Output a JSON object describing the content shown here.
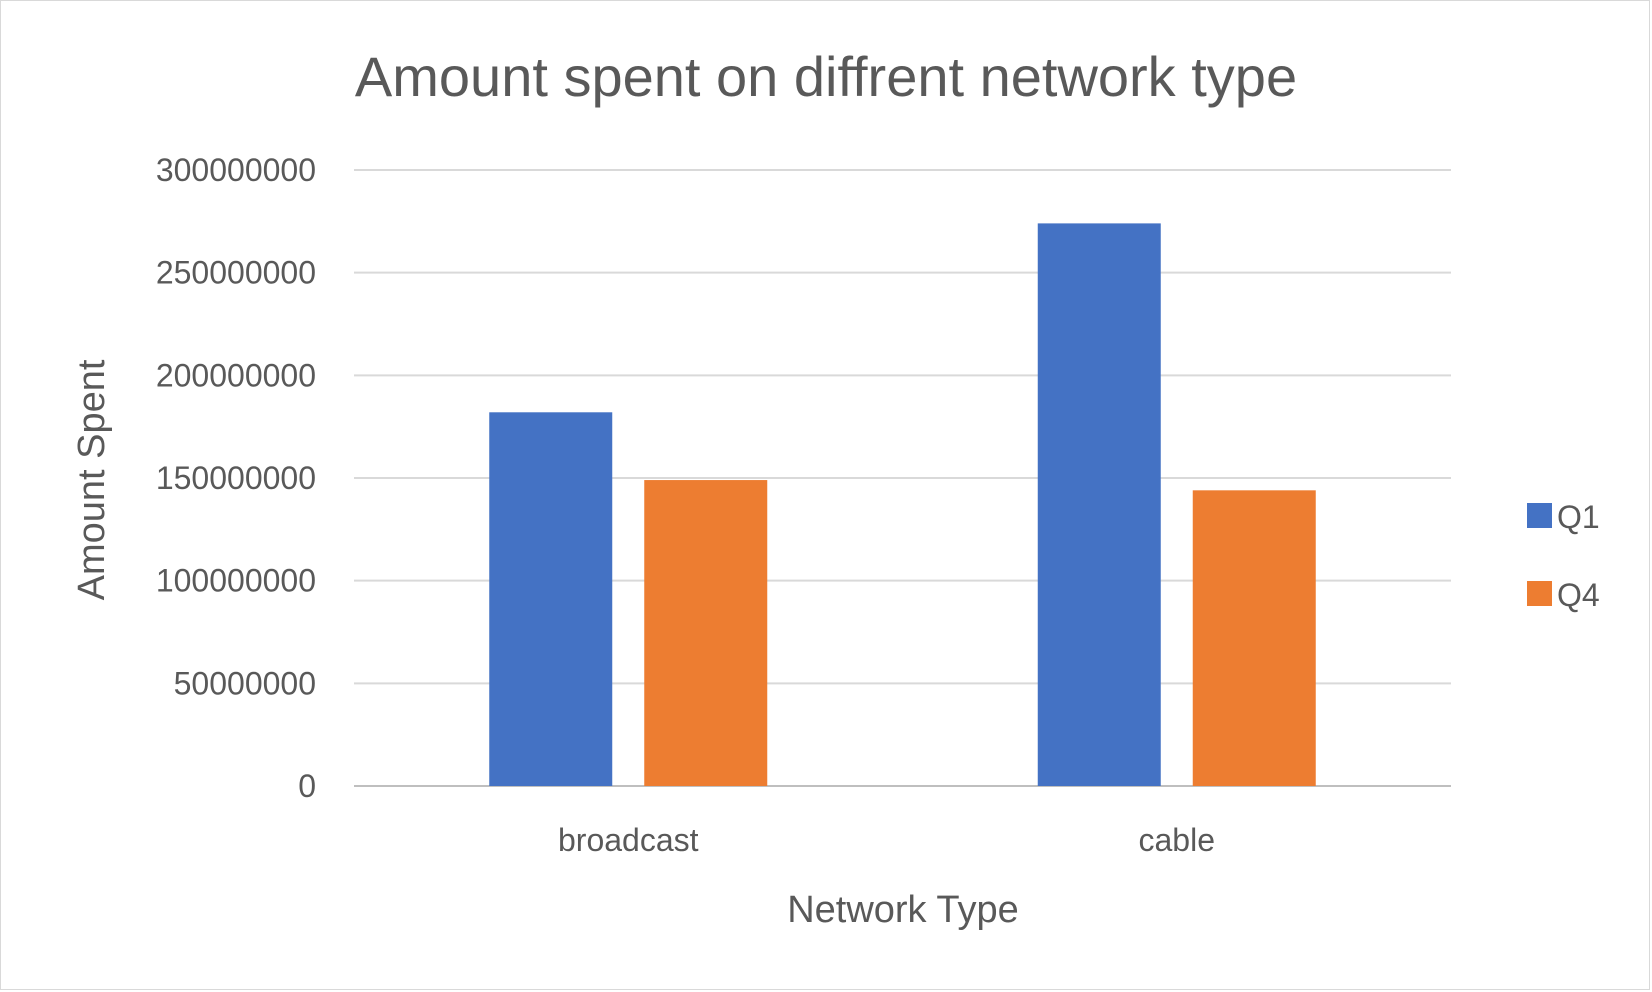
{
  "chart_data": {
    "type": "bar",
    "title": "Amount spent on diffrent network type",
    "xlabel": "Network Type",
    "ylabel": "Amount Spent",
    "categories": [
      "broadcast",
      "cable"
    ],
    "series": [
      {
        "name": "Q1",
        "color": "#4472C4",
        "values": [
          182000000,
          274000000
        ]
      },
      {
        "name": "Q4",
        "color": "#ED7D31",
        "values": [
          149000000,
          144000000
        ]
      }
    ],
    "ylim": [
      0,
      300000000
    ],
    "yticks": [
      "0",
      "50000000",
      "100000000",
      "150000000",
      "200000000",
      "250000000",
      "300000000"
    ],
    "grid": true,
    "legend_position": "right"
  }
}
